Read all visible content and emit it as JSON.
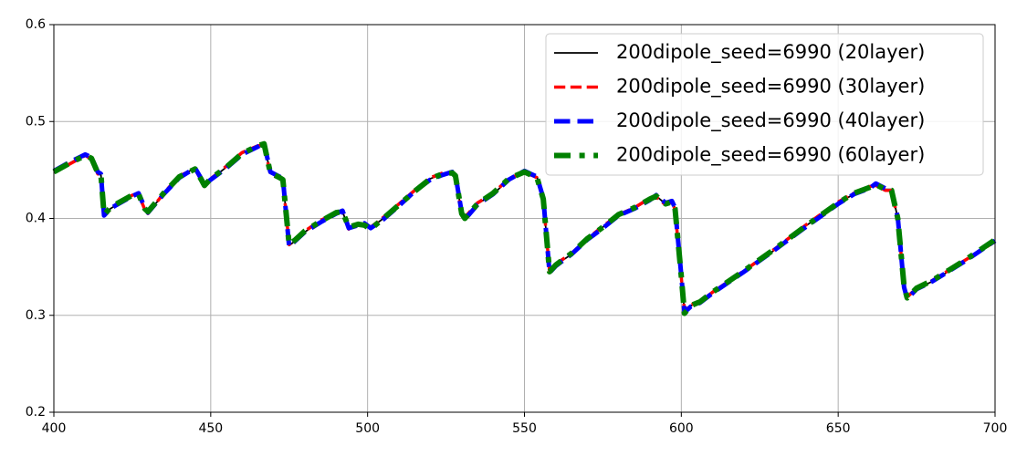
{
  "chart_data": {
    "type": "line",
    "x": [
      400,
      405,
      410,
      412,
      414,
      415,
      416,
      418,
      420,
      425,
      427,
      429,
      430,
      435,
      440,
      445,
      447,
      448,
      450,
      455,
      460,
      465,
      467,
      469,
      472,
      473,
      475,
      477,
      480,
      485,
      490,
      492,
      494,
      497,
      499,
      501,
      505,
      510,
      515,
      520,
      524,
      527,
      528,
      530,
      531,
      535,
      540,
      545,
      550,
      552,
      554,
      556,
      558,
      560,
      565,
      570,
      575,
      580,
      585,
      590,
      592,
      595,
      597,
      598,
      600,
      601,
      603,
      606,
      610,
      620,
      630,
      640,
      650,
      655,
      660,
      662,
      665,
      667,
      669,
      671,
      672,
      675,
      680,
      685,
      690,
      700
    ],
    "series": [
      {
        "name": "200dipole_seed=6990 (20layer)",
        "color": "#000000",
        "linestyle": "solid",
        "values": [
          0.447,
          0.457,
          0.466,
          0.462,
          0.447,
          0.445,
          0.405,
          0.41,
          0.414,
          0.424,
          0.426,
          0.41,
          0.406,
          0.425,
          0.443,
          0.452,
          0.44,
          0.434,
          0.44,
          0.453,
          0.467,
          0.474,
          0.477,
          0.447,
          0.442,
          0.44,
          0.372,
          0.377,
          0.386,
          0.397,
          0.405,
          0.407,
          0.39,
          0.393,
          0.393,
          0.39,
          0.4,
          0.414,
          0.428,
          0.441,
          0.446,
          0.447,
          0.444,
          0.405,
          0.4,
          0.415,
          0.425,
          0.44,
          0.447,
          0.444,
          0.443,
          0.42,
          0.345,
          0.352,
          0.363,
          0.378,
          0.391,
          0.403,
          0.41,
          0.42,
          0.423,
          0.415,
          0.418,
          0.41,
          0.34,
          0.304,
          0.31,
          0.313,
          0.323,
          0.345,
          0.368,
          0.393,
          0.416,
          0.425,
          0.432,
          0.435,
          0.43,
          0.43,
          0.4,
          0.33,
          0.318,
          0.327,
          0.335,
          0.345,
          0.355,
          0.377
        ]
      },
      {
        "name": "200dipole_seed=6990 (30layer)",
        "color": "#ff0000",
        "linestyle": "dashed",
        "values": [
          0.448,
          0.456,
          0.465,
          0.461,
          0.446,
          0.444,
          0.404,
          0.409,
          0.415,
          0.424,
          0.425,
          0.409,
          0.405,
          0.426,
          0.444,
          0.451,
          0.439,
          0.433,
          0.441,
          0.454,
          0.468,
          0.475,
          0.476,
          0.446,
          0.441,
          0.439,
          0.373,
          0.378,
          0.387,
          0.398,
          0.406,
          0.408,
          0.389,
          0.394,
          0.394,
          0.391,
          0.401,
          0.415,
          0.429,
          0.442,
          0.447,
          0.446,
          0.443,
          0.404,
          0.401,
          0.416,
          0.426,
          0.441,
          0.448,
          0.445,
          0.442,
          0.419,
          0.346,
          0.353,
          0.364,
          0.379,
          0.392,
          0.404,
          0.411,
          0.421,
          0.422,
          0.414,
          0.417,
          0.409,
          0.339,
          0.305,
          0.311,
          0.314,
          0.324,
          0.346,
          0.369,
          0.394,
          0.417,
          0.426,
          0.433,
          0.434,
          0.429,
          0.429,
          0.399,
          0.331,
          0.319,
          0.328,
          0.336,
          0.346,
          0.356,
          0.376
        ]
      },
      {
        "name": "200dipole_seed=6990 (40layer)",
        "color": "#0000ff",
        "linestyle": "dashed",
        "values": [
          0.449,
          0.458,
          0.466,
          0.463,
          0.448,
          0.446,
          0.403,
          0.41,
          0.414,
          0.423,
          0.426,
          0.411,
          0.406,
          0.425,
          0.442,
          0.452,
          0.441,
          0.435,
          0.44,
          0.452,
          0.466,
          0.474,
          0.478,
          0.448,
          0.443,
          0.441,
          0.371,
          0.377,
          0.386,
          0.396,
          0.405,
          0.408,
          0.39,
          0.393,
          0.395,
          0.39,
          0.399,
          0.413,
          0.428,
          0.44,
          0.445,
          0.448,
          0.445,
          0.406,
          0.399,
          0.414,
          0.425,
          0.44,
          0.449,
          0.446,
          0.443,
          0.421,
          0.344,
          0.351,
          0.363,
          0.378,
          0.39,
          0.403,
          0.41,
          0.419,
          0.424,
          0.416,
          0.418,
          0.411,
          0.341,
          0.303,
          0.309,
          0.313,
          0.323,
          0.345,
          0.368,
          0.392,
          0.415,
          0.425,
          0.431,
          0.436,
          0.431,
          0.43,
          0.401,
          0.329,
          0.317,
          0.327,
          0.335,
          0.345,
          0.355,
          0.377
        ]
      },
      {
        "name": "200dipole_seed=6990 (60layer)",
        "color": "#008000",
        "linestyle": "dashdot",
        "values": [
          0.448,
          0.457,
          0.465,
          0.462,
          0.447,
          0.445,
          0.404,
          0.411,
          0.415,
          0.424,
          0.425,
          0.41,
          0.407,
          0.426,
          0.443,
          0.451,
          0.44,
          0.434,
          0.441,
          0.453,
          0.467,
          0.475,
          0.477,
          0.447,
          0.442,
          0.44,
          0.373,
          0.378,
          0.387,
          0.397,
          0.406,
          0.407,
          0.391,
          0.394,
          0.393,
          0.389,
          0.4,
          0.414,
          0.428,
          0.441,
          0.446,
          0.447,
          0.444,
          0.405,
          0.4,
          0.415,
          0.426,
          0.441,
          0.448,
          0.445,
          0.442,
          0.42,
          0.345,
          0.352,
          0.364,
          0.379,
          0.391,
          0.404,
          0.411,
          0.42,
          0.423,
          0.415,
          0.417,
          0.41,
          0.34,
          0.302,
          0.31,
          0.314,
          0.324,
          0.346,
          0.369,
          0.393,
          0.416,
          0.426,
          0.432,
          0.435,
          0.43,
          0.429,
          0.4,
          0.33,
          0.318,
          0.328,
          0.336,
          0.346,
          0.356,
          0.378
        ]
      }
    ],
    "xlim": [
      400,
      700
    ],
    "xticks": [
      400,
      450,
      500,
      550,
      600,
      650,
      700
    ],
    "ylim": [
      0.2,
      0.6
    ],
    "yticks": [
      0.2,
      0.3,
      0.4,
      0.5,
      0.6
    ],
    "grid": true,
    "legend": "upper right"
  }
}
